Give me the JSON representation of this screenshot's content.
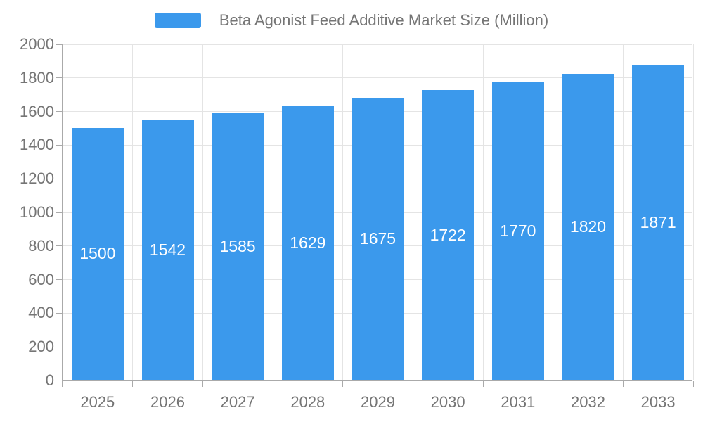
{
  "legend": {
    "label": "Beta Agonist Feed Additive Market Size (Million)",
    "swatch_color": "#3b99ec"
  },
  "chart_data": {
    "type": "bar",
    "title": "Beta Agonist Feed Additive Market Size (Million)",
    "categories": [
      "2025",
      "2026",
      "2027",
      "2028",
      "2029",
      "2030",
      "2031",
      "2032",
      "2033"
    ],
    "values": [
      1500,
      1542,
      1585,
      1629,
      1675,
      1722,
      1770,
      1820,
      1871
    ],
    "xlabel": "",
    "ylabel": "",
    "ylim": [
      0,
      2000
    ],
    "ytick_step": 200,
    "ytick_labels": [
      "0",
      "200",
      "400",
      "600",
      "800",
      "1000",
      "1200",
      "1400",
      "1600",
      "1800",
      "2000"
    ],
    "grid": true,
    "legend_position": "top-center",
    "colors": {
      "bar": "#3b99ec",
      "bar_label": "#ffffff",
      "axis_line": "#aaaaaa",
      "grid_line": "#e4e4e4",
      "tick_text": "#757575",
      "legend_text": "#757575",
      "background": "#ffffff"
    }
  }
}
